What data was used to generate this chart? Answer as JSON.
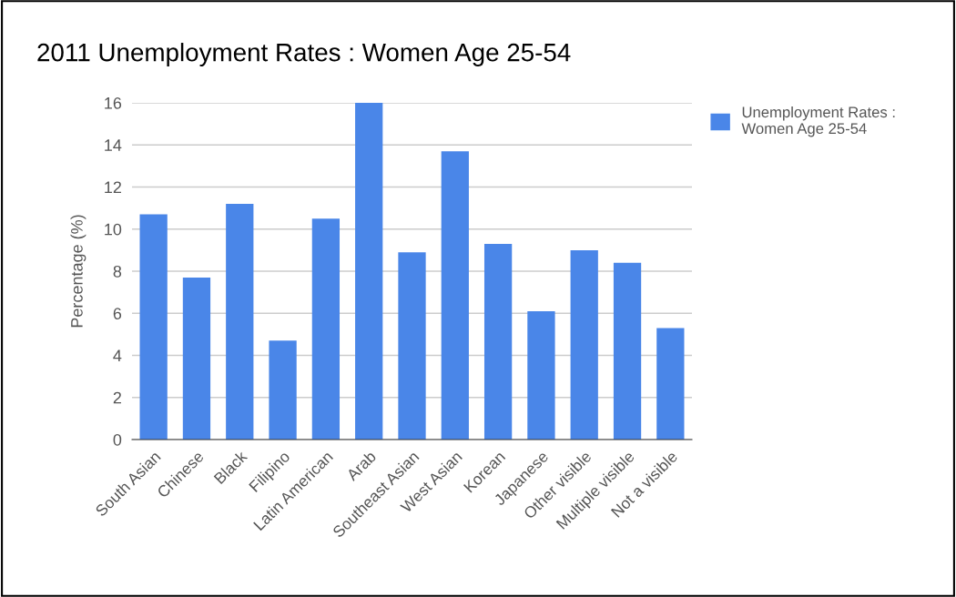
{
  "chart_data": {
    "type": "bar",
    "title": "2011 Unemployment Rates : Women Age 25-54",
    "ylabel": "Percentage (%)",
    "categories": [
      "South Asian",
      "Chinese",
      "Black",
      "Filipino",
      "Latin American",
      "Arab",
      "Southeast Asian",
      "West Asian",
      "Korean",
      "Japanese",
      "Other visible",
      "Multiple visible",
      "Not a visible"
    ],
    "series": [
      {
        "name": "Unemployment Rates : Women Age 25-54",
        "color": "#4a86e8",
        "values": [
          10.7,
          7.7,
          11.2,
          4.7,
          10.5,
          16.0,
          8.9,
          13.7,
          9.3,
          6.1,
          9.0,
          8.4,
          5.3
        ]
      }
    ],
    "ylim": [
      0,
      16
    ],
    "yticks": [
      0,
      2,
      4,
      6,
      8,
      10,
      12,
      14,
      16
    ],
    "grid": "y",
    "legend": "top right"
  }
}
